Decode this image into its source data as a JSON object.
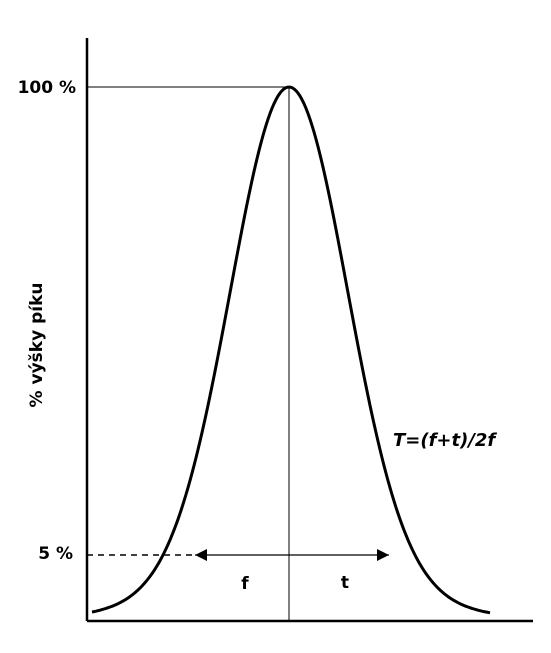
{
  "diagram": {
    "y_axis_label": "% výšky píku",
    "ticks": {
      "top": "100 %",
      "bottom": "5 %"
    },
    "labels": {
      "front": "f",
      "tail": "t"
    },
    "formula": "T=(f+t)/2f",
    "colors": {
      "stroke": "#000000",
      "background": "#ffffff"
    }
  }
}
